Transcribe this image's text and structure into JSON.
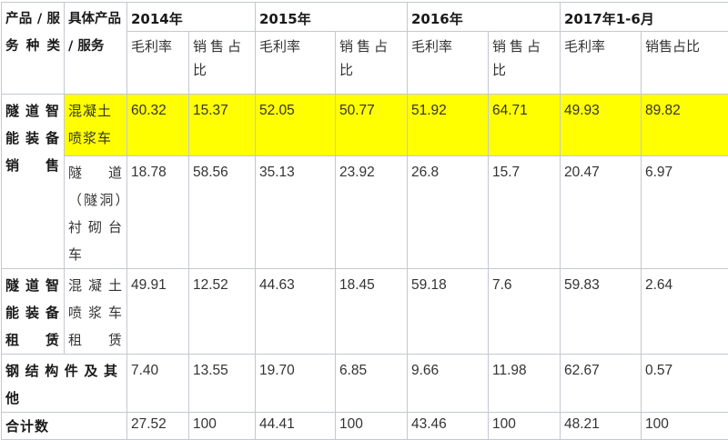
{
  "header": {
    "col1": "产品 / 服务种类",
    "col2": "具体产品 / 服务",
    "years": [
      "2014年",
      "2015年",
      "2016年",
      "2017年1-6月"
    ],
    "sub": [
      "毛利率",
      "销售占比"
    ]
  },
  "rows": [
    {
      "category": "隧道智能装备销售",
      "product": "混凝土喷浆车",
      "values": [
        "60.32",
        "15.37",
        "52.05",
        "50.77",
        "51.92",
        "64.71",
        "49.93",
        "89.82"
      ]
    },
    {
      "category": "",
      "product": "隧道（隧洞）衬砌台车",
      "values": [
        "18.78",
        "58.56",
        "35.13",
        "23.92",
        "26.8",
        "15.7",
        "20.47",
        "6.97"
      ]
    },
    {
      "category": "隧道智能装备租赁",
      "product": "混凝土喷浆车租赁",
      "values": [
        "49.91",
        "12.52",
        "44.63",
        "18.45",
        "59.18",
        "7.6",
        "59.83",
        "2.64"
      ]
    },
    {
      "category": "钢结构件及其他",
      "product": "",
      "values": [
        "7.40",
        "13.55",
        "19.70",
        "6.85",
        "9.66",
        "11.98",
        "62.67",
        "0.57"
      ]
    },
    {
      "category": "合计数",
      "product": "",
      "values": [
        "27.52",
        "100",
        "44.41",
        "100",
        "43.46",
        "100",
        "48.21",
        "100"
      ]
    }
  ],
  "colors": {
    "highlight": "#ffff00",
    "border": "#c4c8d0"
  }
}
